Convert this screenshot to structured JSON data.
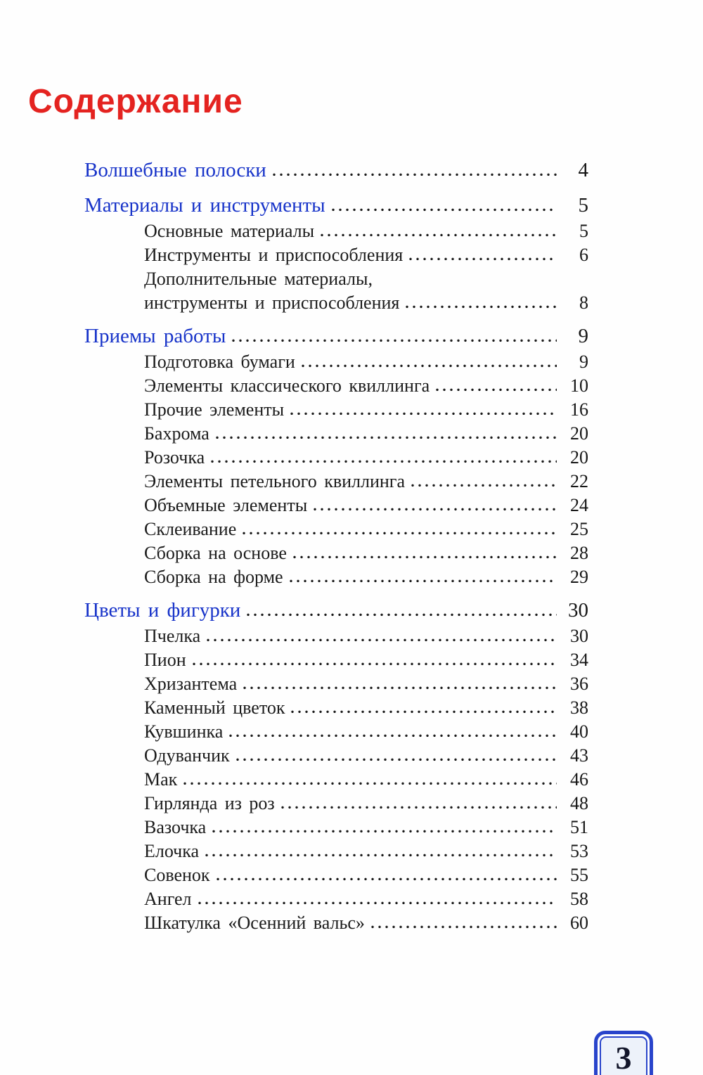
{
  "page": {
    "title": "Содержание",
    "page_number": "3"
  },
  "colors": {
    "title_red": "#e42320",
    "heading_blue": "#1733c9",
    "text_black": "#1b1b1b",
    "badge_blue": "#2944cb",
    "badge_fill": "#edf2fa"
  },
  "toc": {
    "entries": [
      {
        "label": "Волшебные полоски",
        "page": "4",
        "level": 1
      },
      {
        "label": "Материалы и инструменты",
        "page": "5",
        "level": 1
      },
      {
        "label": "Основные материалы",
        "page": "5",
        "level": 2
      },
      {
        "label": "Инструменты и приспособления",
        "page": "6",
        "level": 2
      },
      {
        "label": "Дополнительные материалы,",
        "page": "",
        "level": 2
      },
      {
        "label": "инструменты и приспособления",
        "page": "8",
        "level": 2
      },
      {
        "label": "Приемы работы",
        "page": "9",
        "level": 1
      },
      {
        "label": "Подготовка бумаги",
        "page": "9",
        "level": 2
      },
      {
        "label": "Элементы классического квиллинга",
        "page": "10",
        "level": 2
      },
      {
        "label": "Прочие элементы",
        "page": "16",
        "level": 2
      },
      {
        "label": "Бахрома",
        "page": "20",
        "level": 2
      },
      {
        "label": "Розочка",
        "page": "20",
        "level": 2
      },
      {
        "label": "Элементы петельного квиллинга",
        "page": "22",
        "level": 2
      },
      {
        "label": "Объемные элементы",
        "page": "24",
        "level": 2
      },
      {
        "label": "Склеивание",
        "page": "25",
        "level": 2
      },
      {
        "label": "Сборка на основе",
        "page": "28",
        "level": 2
      },
      {
        "label": "Сборка на форме",
        "page": "29",
        "level": 2
      },
      {
        "label": "Цветы и фигурки",
        "page": "30",
        "level": 1
      },
      {
        "label": "Пчелка",
        "page": "30",
        "level": 2
      },
      {
        "label": "Пион",
        "page": "34",
        "level": 2
      },
      {
        "label": "Хризантема",
        "page": "36",
        "level": 2
      },
      {
        "label": "Каменный цветок",
        "page": "38",
        "level": 2
      },
      {
        "label": "Кувшинка",
        "page": "40",
        "level": 2
      },
      {
        "label": "Одуванчик",
        "page": "43",
        "level": 2
      },
      {
        "label": "Мак",
        "page": "46",
        "level": 2
      },
      {
        "label": "Гирлянда из роз",
        "page": "48",
        "level": 2
      },
      {
        "label": "Вазочка",
        "page": "51",
        "level": 2
      },
      {
        "label": "Елочка",
        "page": "53",
        "level": 2
      },
      {
        "label": "Совенок",
        "page": "55",
        "level": 2
      },
      {
        "label": "Ангел",
        "page": "58",
        "level": 2
      },
      {
        "label": "Шкатулка «Осенний вальс»",
        "page": "60",
        "level": 2
      }
    ]
  }
}
